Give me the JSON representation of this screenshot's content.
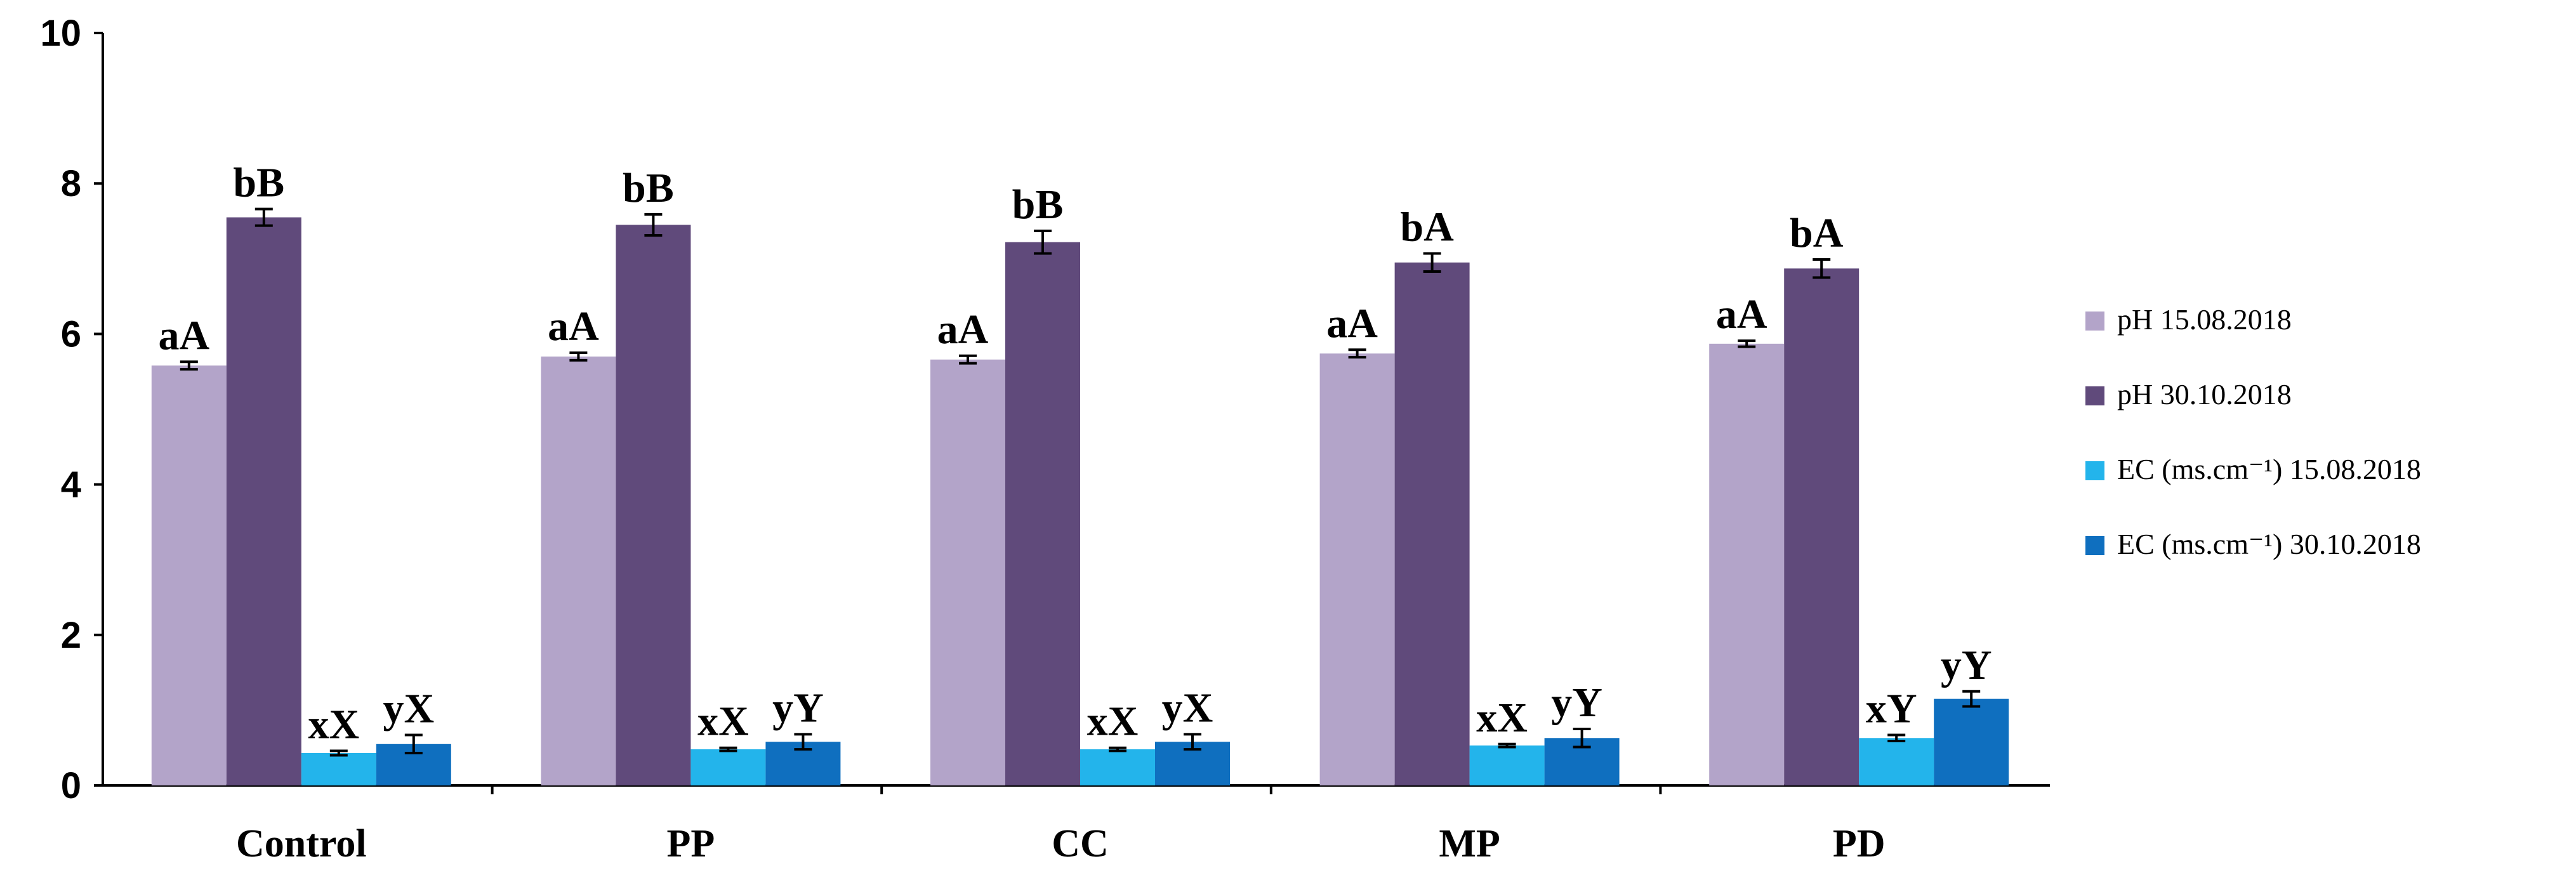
{
  "chart_data": {
    "type": "bar",
    "categories": [
      "Control",
      "PP",
      "CC",
      "MP",
      "PD"
    ],
    "ylim": [
      0,
      10
    ],
    "yticks": [
      0,
      2,
      4,
      6,
      8,
      10
    ],
    "grid": false,
    "legend_position": "right",
    "series": [
      {
        "name": "pH 15.08.2018",
        "color": "#b3a4c9",
        "values": [
          5.58,
          5.7,
          5.66,
          5.74,
          5.87
        ],
        "errors": [
          0.05,
          0.05,
          0.05,
          0.05,
          0.04
        ],
        "labels": [
          "aA",
          "aA",
          "aA",
          "aA",
          "aA"
        ]
      },
      {
        "name": "pH 30.10.2018",
        "color": "#604a7b",
        "values": [
          7.55,
          7.45,
          7.22,
          6.95,
          6.87
        ],
        "errors": [
          0.11,
          0.14,
          0.15,
          0.12,
          0.12
        ],
        "labels": [
          "bB",
          "bB",
          "bB",
          "bA",
          "bA"
        ]
      },
      {
        "name": "EC (ms.cm⁻¹) 15.08.2018",
        "color": "#23b4eb",
        "values": [
          0.43,
          0.48,
          0.48,
          0.53,
          0.63
        ],
        "errors": [
          0.03,
          0.02,
          0.02,
          0.02,
          0.04
        ],
        "labels": [
          "xX",
          "xX",
          "xX",
          "xX",
          "xY"
        ]
      },
      {
        "name": "EC (ms.cm⁻¹) 30.10.2018",
        "color": "#0f6fbf",
        "values": [
          0.55,
          0.58,
          0.58,
          0.63,
          1.15
        ],
        "errors": [
          0.12,
          0.1,
          0.1,
          0.12,
          0.1
        ],
        "labels": [
          "yX",
          "yY",
          "yX",
          "yY",
          "yY"
        ]
      }
    ]
  }
}
